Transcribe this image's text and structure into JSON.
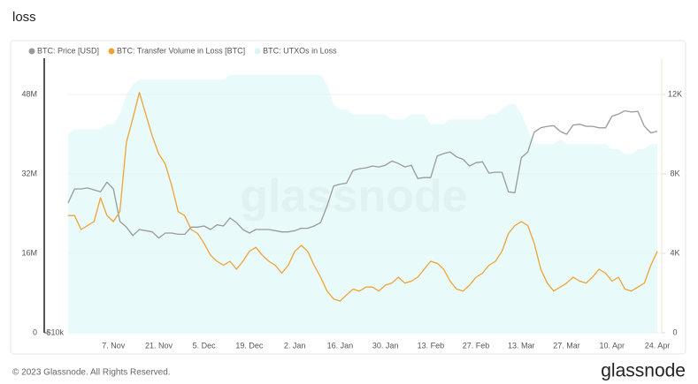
{
  "title": "loss",
  "chart_data": {
    "type": "line",
    "watermark": "glassnode",
    "legend": "top-left",
    "grid": true,
    "categories": [
      null,
      null,
      null,
      null,
      null,
      null,
      null,
      "7. Nov",
      null,
      null,
      null,
      null,
      null,
      null,
      "21. Nov",
      null,
      null,
      null,
      null,
      null,
      null,
      "5. Dec",
      null,
      null,
      null,
      null,
      null,
      null,
      "19. Dec",
      null,
      null,
      null,
      null,
      null,
      null,
      "2. Jan",
      null,
      null,
      null,
      null,
      null,
      null,
      "16. Jan",
      null,
      null,
      null,
      null,
      null,
      null,
      "30. Jan",
      null,
      null,
      null,
      null,
      null,
      null,
      "13. Feb",
      null,
      null,
      null,
      null,
      null,
      null,
      "27. Feb",
      null,
      null,
      null,
      null,
      null,
      null,
      "13. Mar",
      null,
      null,
      null,
      null,
      null,
      null,
      "27. Mar",
      null,
      null,
      null,
      null,
      null,
      null,
      "10. Apr",
      null,
      null,
      null,
      null,
      null,
      null,
      "24. Apr"
    ],
    "ylim": [
      0,
      55300000
    ],
    "yticks": [
      0,
      {
        "value": 16000000,
        "label": "16M"
      },
      {
        "value": 32000000,
        "label": "32M"
      },
      {
        "value": 48000000,
        "label": "48M"
      }
    ],
    "y2lim": [
      0,
      13820
    ],
    "y2ticks": [
      0,
      {
        "value": 4000,
        "label": "4K"
      },
      {
        "value": 8000,
        "label": "8K"
      },
      {
        "value": 12000,
        "label": "12K"
      }
    ],
    "y3lim": [
      10000,
      39700
    ],
    "y3log": true,
    "y3ticks": [
      {
        "value": 10000,
        "label": "$10k"
      }
    ],
    "series": [
      {
        "name": "BTC: Price [USD]",
        "color": "#9a9a9a",
        "axis": "y3",
        "kind": "line",
        "values": [
          19200,
          20600,
          20600,
          20700,
          20500,
          20300,
          21300,
          20600,
          17500,
          17000,
          16300,
          16800,
          16700,
          16600,
          16100,
          16500,
          16500,
          16400,
          16400,
          17000,
          17000,
          17100,
          16800,
          17200,
          17100,
          17800,
          17400,
          16800,
          16500,
          16800,
          16800,
          16800,
          16700,
          16600,
          16600,
          16700,
          16900,
          16900,
          17100,
          17400,
          18900,
          20900,
          21100,
          21200,
          22600,
          22800,
          22900,
          23100,
          23000,
          23200,
          23700,
          23400,
          23000,
          23200,
          21700,
          21800,
          21800,
          24300,
          24600,
          24800,
          24200,
          23900,
          23100,
          23500,
          23600,
          22300,
          22400,
          22400,
          20300,
          20200,
          24100,
          24800,
          27400,
          28000,
          28200,
          28300,
          27500,
          27100,
          28400,
          28500,
          28200,
          28200,
          28000,
          28000,
          29700,
          30000,
          30500,
          30300,
          30400,
          28200,
          27300,
          27500
        ]
      },
      {
        "name": "BTC: Transfer Volume in Loss [BTC]",
        "color": "#f0a236",
        "axis": "y2",
        "kind": "line",
        "values": [
          5900,
          5900,
          5200,
          5400,
          5600,
          6800,
          5900,
          5600,
          6100,
          9600,
          10800,
          12100,
          11000,
          9900,
          9000,
          8500,
          7400,
          6100,
          5900,
          5200,
          5000,
          4500,
          3900,
          3600,
          3400,
          3600,
          3200,
          3600,
          4100,
          4300,
          3900,
          3600,
          3400,
          3000,
          3400,
          4100,
          4400,
          4100,
          3400,
          2800,
          2100,
          1700,
          1600,
          1900,
          2200,
          2100,
          2300,
          2300,
          2100,
          2400,
          2500,
          2800,
          2500,
          2600,
          2800,
          3200,
          3600,
          3500,
          3200,
          2600,
          2200,
          2100,
          2400,
          2800,
          3000,
          3400,
          3600,
          4100,
          5000,
          5400,
          5600,
          5400,
          4500,
          3200,
          2500,
          2100,
          2300,
          2500,
          2800,
          2600,
          2500,
          2800,
          3200,
          3000,
          2600,
          2800,
          2200,
          2100,
          2300,
          2500,
          3400,
          4100
        ]
      },
      {
        "name": "BTC: UTXOs in Loss",
        "color": "#d9f7f7",
        "axis": "y",
        "kind": "area",
        "values": [
          40000000,
          41000000,
          41000000,
          41000000,
          41000000,
          41000000,
          42000000,
          42000000,
          44000000,
          48000000,
          50000000,
          51000000,
          51000000,
          51000000,
          51000000,
          51000000,
          51000000,
          51000000,
          51000000,
          51000000,
          51000000,
          51000000,
          51000000,
          51000000,
          51000000,
          52000000,
          52000000,
          52000000,
          52000000,
          52000000,
          52000000,
          52000000,
          52000000,
          52000000,
          52000000,
          52000000,
          52000000,
          52000000,
          52000000,
          52000000,
          50000000,
          46000000,
          45000000,
          45000000,
          44000000,
          44000000,
          44000000,
          44000000,
          44000000,
          44000000,
          43000000,
          43000000,
          43000000,
          44000000,
          44000000,
          44000000,
          42000000,
          42000000,
          42000000,
          43000000,
          43000000,
          43000000,
          43000000,
          43000000,
          43000000,
          44000000,
          44000000,
          45000000,
          46000000,
          46000000,
          44000000,
          41000000,
          38000000,
          38000000,
          38000000,
          38000000,
          39000000,
          38000000,
          38000000,
          38000000,
          38000000,
          38000000,
          38000000,
          38000000,
          37000000,
          37000000,
          36000000,
          36000000,
          37000000,
          37000000,
          38000000,
          38000000
        ]
      }
    ]
  },
  "footer": {
    "copyright": "© 2023 Glassnode. All Rights Reserved.",
    "logo": "glassnode"
  }
}
